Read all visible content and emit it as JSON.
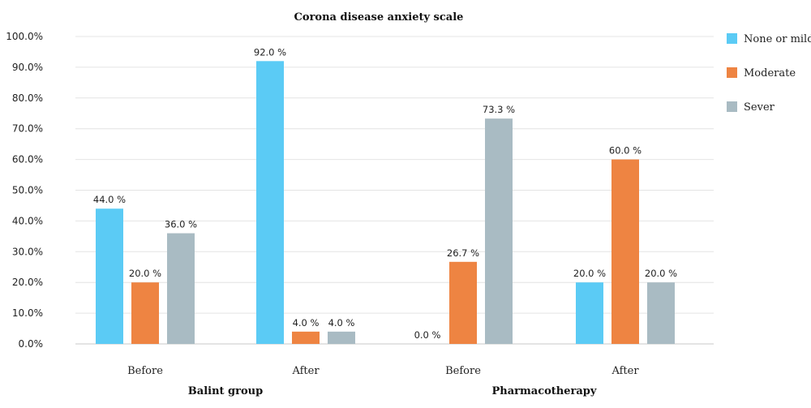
{
  "chart_data": {
    "type": "bar",
    "title": "Corona disease anxiety scale",
    "categories": [
      "Before",
      "After",
      "Before",
      "After"
    ],
    "groups": [
      {
        "label": "Balint group",
        "categories": [
          0,
          1
        ]
      },
      {
        "label": "Pharmacotherapy",
        "categories": [
          2,
          3
        ]
      }
    ],
    "series": [
      {
        "name": "None or mild",
        "color": "#5BCBF5",
        "values": [
          44.0,
          92.0,
          0.0,
          20.0
        ],
        "labels": [
          "44.0 %",
          "92.0 %",
          "0.0 %",
          "20.0 %"
        ]
      },
      {
        "name": "Moderate",
        "color": "#EE8442",
        "values": [
          20.0,
          4.0,
          26.7,
          60.0
        ],
        "labels": [
          "20.0 %",
          "4.0 %",
          "26.7 %",
          "60.0 %"
        ]
      },
      {
        "name": "Sever",
        "color": "#A9BBC3",
        "values": [
          36.0,
          4.0,
          73.3,
          20.0
        ],
        "labels": [
          "36.0 %",
          "4.0 %",
          "73.3 %",
          "20.0 %"
        ]
      }
    ],
    "yticks": [
      "0.0%",
      "10.0%",
      "20.0%",
      "30.0%",
      "40.0%",
      "50.0%",
      "60.0%",
      "70.0%",
      "80.0%",
      "90.0%",
      "100.0%"
    ],
    "ylim": [
      0,
      100
    ],
    "grid": true,
    "legend_position": "right"
  }
}
